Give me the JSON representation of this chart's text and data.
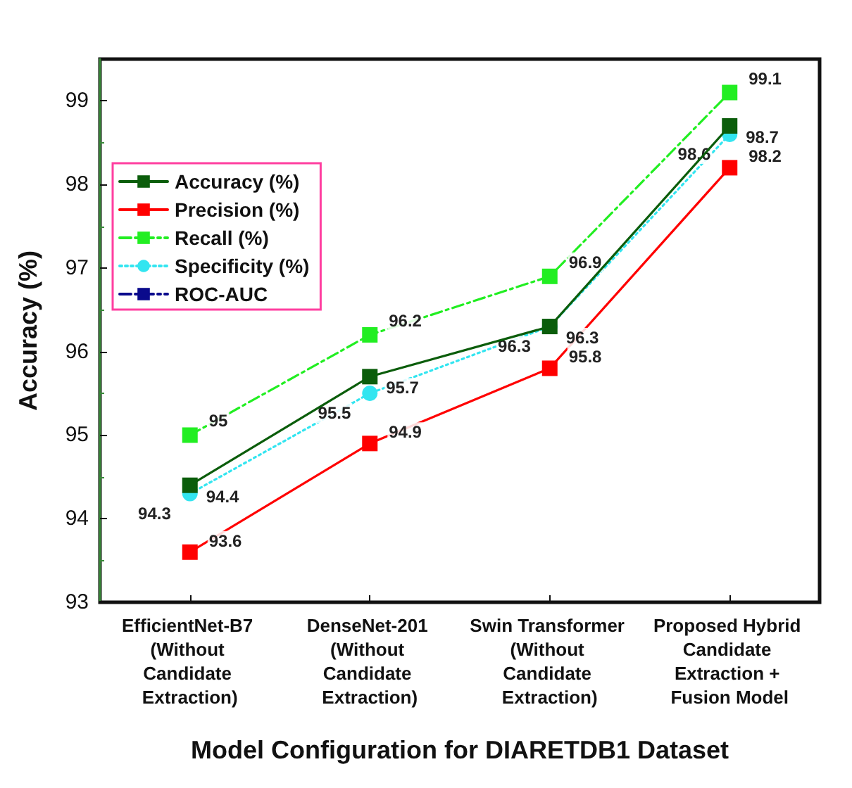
{
  "chart_data": {
    "type": "line",
    "xlabel": "Model Configuration for DIARETDB1 Dataset",
    "ylabel": "Accuracy (%)",
    "categories": [
      "EfficientNet-B7 (Without Candidate Extraction)",
      "DenseNet-201 (Without Candidate Extraction)",
      "Swin Transformer (Without Candidate Extraction)",
      "Proposed Hybrid Candidate Extraction + Fusion Model"
    ],
    "ylim": [
      93,
      99.5
    ],
    "yticks": [
      93,
      94,
      95,
      96,
      97,
      98,
      99
    ],
    "grid": false,
    "legend": "top left",
    "series": [
      {
        "name": "Accuracy (%)",
        "color": "#0b5d0b",
        "values": [
          94.4,
          95.7,
          96.3,
          98.7
        ],
        "marker": "square",
        "line_style": "solid",
        "data_labels": true
      },
      {
        "name": "Precision (%)",
        "color": "#ff0000",
        "values": [
          93.6,
          94.9,
          95.8,
          98.2
        ],
        "marker": "square",
        "line_style": "solid",
        "data_labels": true
      },
      {
        "name": "Recall (%)",
        "color": "#22ee22",
        "values": [
          95,
          96.2,
          96.9,
          99.1
        ],
        "marker": "square",
        "line_style": "dashed",
        "data_labels": true
      },
      {
        "name": "Specificity (%)",
        "color": "#33e5f0",
        "values": [
          94.3,
          95.5,
          96.3,
          98.6
        ],
        "marker": "circle",
        "line_style": "dotted",
        "data_labels": true
      },
      {
        "name": "ROC-AUC",
        "color": "#0a0a8c",
        "values": [
          null,
          null,
          null,
          null
        ],
        "marker": "square",
        "line_style": "dashed"
      }
    ]
  }
}
